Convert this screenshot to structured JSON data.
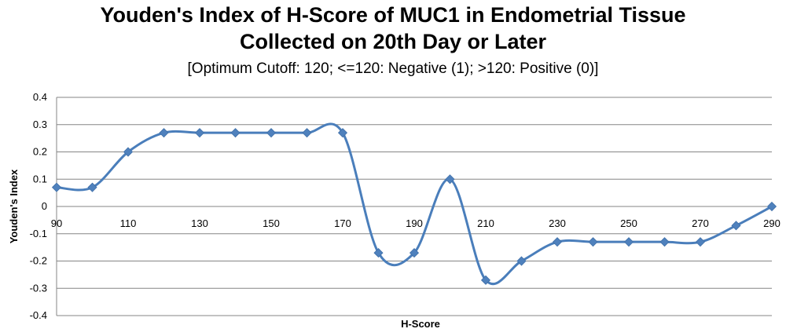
{
  "chart_data": {
    "type": "line",
    "title_line1": "Youden's Index of H-Score of MUC1 in Endometrial Tissue",
    "title_line2": "Collected on 20th Day or Later",
    "subtitle": "[Optimum Cutoff: 120; <=120: Negative (1); >120: Positive (0)]",
    "xlabel": "H-Score",
    "ylabel": "Youden's Index",
    "xlim": [
      90,
      290
    ],
    "ylim": [
      -0.4,
      0.4
    ],
    "x_ticks": [
      90,
      110,
      130,
      150,
      170,
      190,
      210,
      230,
      250,
      270,
      290
    ],
    "y_ticks": [
      "0.4",
      "0.3",
      "0.2",
      "0.1",
      "0",
      "-0.1",
      "-0.2",
      "-0.3",
      "-0.4"
    ],
    "grid": "horizontal",
    "line_color": "#4A7EBB",
    "marker_color": "#4F81BD",
    "marker": "diamond",
    "smooth": true,
    "series": [
      {
        "x": [
          90,
          100,
          110,
          120,
          130,
          140,
          150,
          160,
          170,
          180,
          190,
          200,
          210,
          220,
          230,
          240,
          250,
          260,
          270,
          280,
          290
        ],
        "y": [
          0.07,
          0.07,
          0.2,
          0.27,
          0.27,
          0.27,
          0.27,
          0.27,
          0.27,
          -0.17,
          -0.17,
          0.1,
          -0.27,
          -0.2,
          -0.13,
          -0.13,
          -0.13,
          -0.13,
          -0.13,
          -0.07,
          0.0
        ]
      }
    ]
  }
}
